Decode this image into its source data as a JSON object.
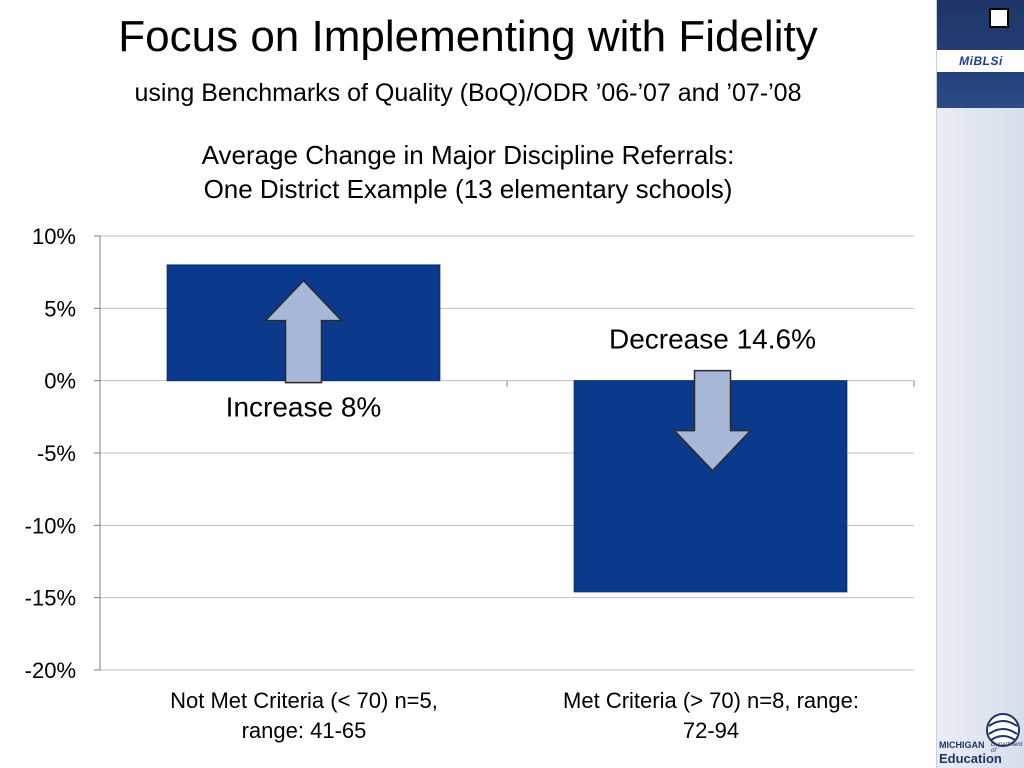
{
  "slide": {
    "title": "Focus on Implementing with Fidelity",
    "subtitle": "using Benchmarks of Quality (BoQ)/ODR ’06-’07 and ’07-’08"
  },
  "branding": {
    "top_logo": "MiBLSi",
    "bottom_logo_line1": "MICHIGAN",
    "bottom_logo_dept": "Department of",
    "bottom_logo_line2": "Education"
  },
  "chart_data": {
    "type": "bar",
    "title_lines": [
      "Average Change in Major Discipline Referrals:",
      "One District Example (13 elementary schools)"
    ],
    "categories": [
      "Not Met Criteria (< 70) n=5, range: 41-65",
      "Met Criteria (> 70) n=8, range: 72-94"
    ],
    "category_lines": [
      [
        "Not Met Criteria (< 70) n=5,",
        "range: 41-65"
      ],
      [
        "Met Criteria (> 70) n=8, range:",
        "72-94"
      ]
    ],
    "values": [
      8,
      -14.6
    ],
    "ylim": [
      -20,
      10
    ],
    "ytick_values": [
      10,
      5,
      0,
      -5,
      -10,
      -15,
      -20
    ],
    "yticks": [
      "10%",
      "5%",
      "0%",
      "-5%",
      "-10%",
      "-15%",
      "-20%"
    ],
    "grid": true,
    "annotations": [
      "Increase 8%",
      "Decrease 14.6%"
    ],
    "arrow_directions": [
      "up",
      "down"
    ],
    "colors": {
      "bar": "#0b3a8c",
      "bar_border": "#0a2f70",
      "arrow_fill": "#a8b6d8",
      "arrow_stroke": "#2a2a2a",
      "grid": "#bfbfbf",
      "axis": "#7f7f7f"
    }
  }
}
